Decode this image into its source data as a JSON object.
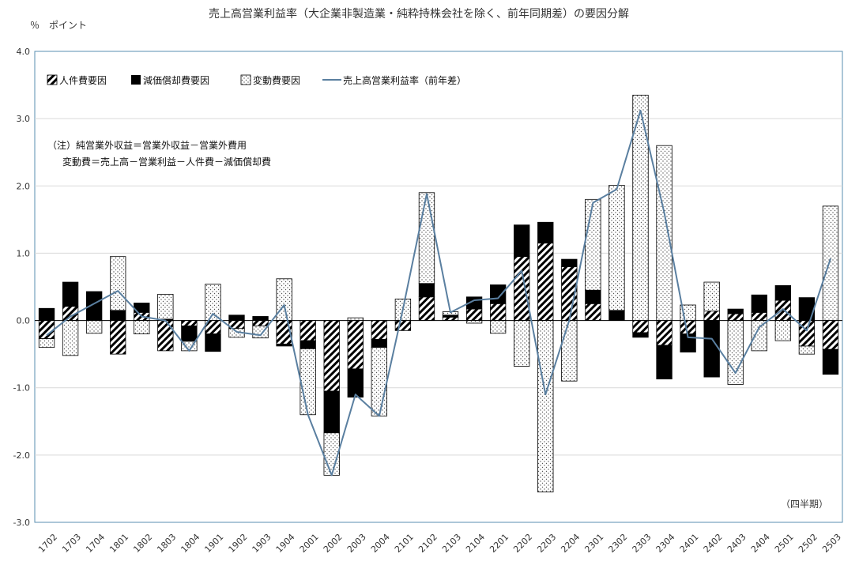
{
  "chart_data": {
    "type": "bar",
    "title": "売上高営業利益率（大企業非製造業・純粋持株会社を除く、前年同期差）の要因分解",
    "ylabel": "％　ポイント",
    "xlabel": "（四半期）",
    "ylim": [
      -3.0,
      4.0
    ],
    "yticks": [
      "4.0",
      "3.0",
      "2.0",
      "1.0",
      "0.0",
      "-1.0",
      "-2.0",
      "-3.0"
    ],
    "ytick_values": [
      4,
      3,
      2,
      1,
      0,
      -1,
      -2,
      -3
    ],
    "grid": true,
    "legend_position": "top-left",
    "categories": [
      "1702",
      "1703",
      "1704",
      "1801",
      "1802",
      "1803",
      "1804",
      "1901",
      "1902",
      "1903",
      "1904",
      "2001",
      "2002",
      "2003",
      "2004",
      "2101",
      "2102",
      "2103",
      "2104",
      "2201",
      "2202",
      "2203",
      "2204",
      "2301",
      "2302",
      "2303",
      "2304",
      "2401",
      "2402",
      "2403",
      "2404",
      "2501",
      "2502",
      "2503"
    ],
    "series": [
      {
        "name": "人件費要因",
        "kind": "bar",
        "pattern": "hatch",
        "values": [
          -0.27,
          0.21,
          0.0,
          -0.5,
          0.12,
          -0.45,
          -0.08,
          -0.2,
          -0.12,
          -0.08,
          -0.35,
          -0.3,
          -1.05,
          -0.72,
          -0.28,
          -0.15,
          0.35,
          0.05,
          0.17,
          0.25,
          0.95,
          1.15,
          0.8,
          0.25,
          0.0,
          -0.18,
          -0.37,
          -0.2,
          0.14,
          0.1,
          0.12,
          0.3,
          -0.38,
          -0.43
        ]
      },
      {
        "name": "減価償却費要因",
        "kind": "bar",
        "pattern": "solid",
        "values": [
          0.18,
          0.36,
          0.43,
          0.15,
          0.14,
          0.02,
          -0.23,
          -0.26,
          0.08,
          0.06,
          -0.03,
          -0.12,
          -0.62,
          -0.42,
          -0.12,
          -0.0,
          0.2,
          0.03,
          0.18,
          0.28,
          0.47,
          0.31,
          0.11,
          0.2,
          0.15,
          -0.07,
          -0.5,
          -0.27,
          -0.84,
          0.07,
          0.26,
          0.22,
          0.34,
          -0.37
        ]
      },
      {
        "name": "変動費要因",
        "kind": "bar",
        "pattern": "dots",
        "values": [
          -0.13,
          -0.52,
          -0.19,
          0.8,
          -0.2,
          0.37,
          -0.14,
          0.54,
          -0.13,
          -0.18,
          0.62,
          -0.98,
          -0.63,
          0.04,
          -1.02,
          0.32,
          1.35,
          0.05,
          -0.04,
          -0.19,
          -0.68,
          -2.55,
          -0.9,
          1.35,
          1.86,
          3.35,
          2.6,
          0.23,
          0.43,
          -0.95,
          -0.45,
          -0.3,
          -0.12,
          1.7
        ]
      },
      {
        "name": "売上高営業利益率（前年差）",
        "kind": "line",
        "color": "#5a7fa0",
        "values": [
          -0.22,
          0.06,
          0.25,
          0.44,
          0.06,
          0.0,
          -0.45,
          0.1,
          -0.17,
          -0.22,
          0.23,
          -1.4,
          -2.3,
          -1.1,
          -1.42,
          0.17,
          1.88,
          0.12,
          0.3,
          0.33,
          0.74,
          -1.1,
          0.0,
          1.75,
          1.95,
          3.12,
          1.6,
          -0.25,
          -0.27,
          -0.78,
          -0.1,
          0.17,
          -0.15,
          0.92
        ]
      }
    ],
    "note": [
      "（注）純営業外収益＝営業外収益－営業外費用",
      "変動費＝売上高－営業利益－人件費－減価償却費"
    ]
  }
}
